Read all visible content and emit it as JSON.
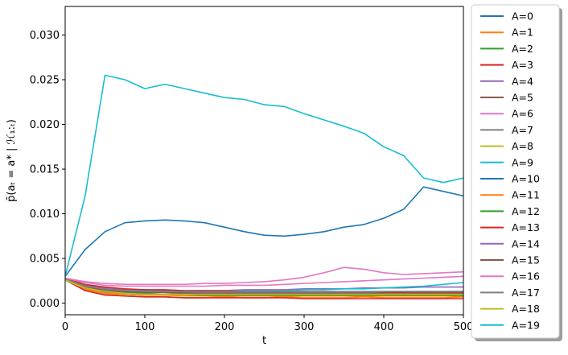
{
  "chart_data": {
    "type": "line",
    "xlabel": "t",
    "ylabel": "p̄(aₜ = a* | ℋ₁:ₜ)",
    "xlim": [
      0,
      500
    ],
    "ylim": [
      -0.0013,
      0.0332
    ],
    "x_ticks": [
      0,
      100,
      200,
      300,
      400,
      500
    ],
    "y_ticks": [
      0.0,
      0.005,
      0.01,
      0.015,
      0.02,
      0.025,
      0.03
    ],
    "y_tick_labels": [
      "0.000",
      "0.005",
      "0.010",
      "0.015",
      "0.020",
      "0.025",
      "0.030"
    ],
    "grid": false,
    "legend_position": "outside-right",
    "x": [
      0,
      25,
      50,
      75,
      100,
      125,
      150,
      175,
      200,
      225,
      250,
      275,
      300,
      325,
      350,
      375,
      400,
      425,
      450,
      475,
      500
    ],
    "series": [
      {
        "name": "A=0",
        "color": "#1f77b4",
        "values": [
          0.0028,
          0.002,
          0.0016,
          0.0014,
          0.0013,
          0.0012,
          0.0012,
          0.0011,
          0.0011,
          0.0011,
          0.001,
          0.001,
          0.0011,
          0.001,
          0.001,
          0.001,
          0.0011,
          0.001,
          0.001,
          0.0011,
          0.0011
        ]
      },
      {
        "name": "A=1",
        "color": "#ff7f0e",
        "values": [
          0.0027,
          0.0015,
          0.001,
          0.0008,
          0.0007,
          0.0007,
          0.0006,
          0.0006,
          0.0007,
          0.0006,
          0.0006,
          0.0007,
          0.0006,
          0.0006,
          0.0006,
          0.0007,
          0.0006,
          0.0006,
          0.0006,
          0.0006,
          0.0007
        ]
      },
      {
        "name": "A=2",
        "color": "#2ca02c",
        "values": [
          0.0027,
          0.0018,
          0.0014,
          0.0012,
          0.0011,
          0.001,
          0.001,
          0.001,
          0.0011,
          0.001,
          0.001,
          0.0011,
          0.001,
          0.001,
          0.0011,
          0.001,
          0.001,
          0.0011,
          0.001,
          0.001,
          0.001
        ]
      },
      {
        "name": "A=3",
        "color": "#d62728",
        "values": [
          0.0026,
          0.0014,
          0.0009,
          0.0008,
          0.0007,
          0.0007,
          0.0006,
          0.0006,
          0.0006,
          0.0006,
          0.0006,
          0.0006,
          0.0005,
          0.0005,
          0.0005,
          0.0005,
          0.0005,
          0.0005,
          0.0005,
          0.0005,
          0.0005
        ]
      },
      {
        "name": "A=4",
        "color": "#9467bd",
        "values": [
          0.0027,
          0.002,
          0.0017,
          0.0015,
          0.0015,
          0.0014,
          0.0014,
          0.0014,
          0.0014,
          0.0015,
          0.0015,
          0.0015,
          0.0016,
          0.0016,
          0.0016,
          0.0017,
          0.0017,
          0.0017,
          0.0018,
          0.0018,
          0.0018
        ]
      },
      {
        "name": "A=5",
        "color": "#8c564b",
        "values": [
          0.0026,
          0.0017,
          0.0013,
          0.0011,
          0.001,
          0.001,
          0.001,
          0.001,
          0.001,
          0.001,
          0.001,
          0.001,
          0.001,
          0.001,
          0.001,
          0.001,
          0.001,
          0.001,
          0.001,
          0.001,
          0.001
        ]
      },
      {
        "name": "A=6",
        "color": "#e377c2",
        "values": [
          0.0028,
          0.0024,
          0.0022,
          0.0021,
          0.0021,
          0.0021,
          0.0021,
          0.0022,
          0.0022,
          0.0023,
          0.0024,
          0.0026,
          0.0029,
          0.0034,
          0.004,
          0.0038,
          0.0034,
          0.0032,
          0.0033,
          0.0034,
          0.0035
        ]
      },
      {
        "name": "A=7",
        "color": "#7f7f7f",
        "values": [
          0.0026,
          0.0016,
          0.0012,
          0.001,
          0.0009,
          0.0009,
          0.0009,
          0.0009,
          0.0009,
          0.0009,
          0.0009,
          0.0009,
          0.0009,
          0.0009,
          0.0009,
          0.0009,
          0.0009,
          0.0009,
          0.0009,
          0.0009,
          0.0009
        ]
      },
      {
        "name": "A=8",
        "color": "#bcbd22",
        "values": [
          0.0027,
          0.0016,
          0.0011,
          0.001,
          0.0009,
          0.0009,
          0.0008,
          0.0008,
          0.0008,
          0.0008,
          0.0008,
          0.0008,
          0.0008,
          0.0008,
          0.0008,
          0.0008,
          0.0008,
          0.0008,
          0.0008,
          0.0008,
          0.0008
        ]
      },
      {
        "name": "A=9",
        "color": "#17becf",
        "values": [
          0.0027,
          0.0018,
          0.0015,
          0.0014,
          0.0014,
          0.0013,
          0.0013,
          0.0013,
          0.0013,
          0.0014,
          0.0014,
          0.0014,
          0.0015,
          0.0015,
          0.0016,
          0.0016,
          0.0017,
          0.0018,
          0.0019,
          0.0021,
          0.0023
        ]
      },
      {
        "name": "A=10",
        "color": "#1f77b4",
        "values": [
          0.003,
          0.006,
          0.008,
          0.009,
          0.0092,
          0.0093,
          0.0092,
          0.009,
          0.0085,
          0.008,
          0.0076,
          0.0075,
          0.0077,
          0.008,
          0.0085,
          0.0088,
          0.0095,
          0.0105,
          0.013,
          0.0125,
          0.012
        ]
      },
      {
        "name": "A=11",
        "color": "#ff7f0e",
        "values": [
          0.0026,
          0.0016,
          0.0011,
          0.001,
          0.0009,
          0.0009,
          0.0009,
          0.0008,
          0.0008,
          0.0008,
          0.0008,
          0.0008,
          0.0008,
          0.0008,
          0.0008,
          0.0008,
          0.0008,
          0.0008,
          0.0008,
          0.0008,
          0.0008
        ]
      },
      {
        "name": "A=12",
        "color": "#2ca02c",
        "values": [
          0.0027,
          0.0017,
          0.0013,
          0.0011,
          0.001,
          0.001,
          0.001,
          0.0009,
          0.0009,
          0.0009,
          0.0009,
          0.0009,
          0.0009,
          0.0009,
          0.0009,
          0.0009,
          0.0009,
          0.0009,
          0.0009,
          0.0009,
          0.0009
        ]
      },
      {
        "name": "A=13",
        "color": "#d62728",
        "values": [
          0.0028,
          0.0021,
          0.0018,
          0.0016,
          0.0015,
          0.0015,
          0.0014,
          0.0014,
          0.0014,
          0.0013,
          0.0013,
          0.0013,
          0.0013,
          0.0012,
          0.0012,
          0.0012,
          0.0012,
          0.0012,
          0.0012,
          0.0012,
          0.0012
        ]
      },
      {
        "name": "A=14",
        "color": "#9467bd",
        "values": [
          0.0027,
          0.0019,
          0.0015,
          0.0014,
          0.0013,
          0.0013,
          0.0013,
          0.0012,
          0.0012,
          0.0012,
          0.0012,
          0.0012,
          0.0012,
          0.0012,
          0.0012,
          0.0012,
          0.0013,
          0.0013,
          0.0013,
          0.0013,
          0.0013
        ]
      },
      {
        "name": "A=15",
        "color": "#8c564b",
        "values": [
          0.0026,
          0.0018,
          0.0014,
          0.0013,
          0.0012,
          0.0012,
          0.0011,
          0.0011,
          0.0011,
          0.0011,
          0.0011,
          0.0011,
          0.0011,
          0.0011,
          0.0011,
          0.0011,
          0.0011,
          0.0011,
          0.0011,
          0.0011,
          0.0011
        ]
      },
      {
        "name": "A=16",
        "color": "#e377c2",
        "values": [
          0.0028,
          0.0023,
          0.002,
          0.0019,
          0.0019,
          0.0019,
          0.0019,
          0.0019,
          0.002,
          0.002,
          0.002,
          0.0021,
          0.0022,
          0.0023,
          0.0024,
          0.0025,
          0.0026,
          0.0027,
          0.0028,
          0.0029,
          0.003
        ]
      },
      {
        "name": "A=17",
        "color": "#7f7f7f",
        "values": [
          0.0027,
          0.0019,
          0.0016,
          0.0014,
          0.0013,
          0.0013,
          0.0013,
          0.0013,
          0.0013,
          0.0013,
          0.0013,
          0.0013,
          0.0013,
          0.0013,
          0.0013,
          0.0013,
          0.0013,
          0.0013,
          0.0013,
          0.0013,
          0.0013
        ]
      },
      {
        "name": "A=18",
        "color": "#bcbd22",
        "values": [
          0.0026,
          0.0017,
          0.0013,
          0.0011,
          0.001,
          0.001,
          0.001,
          0.001,
          0.001,
          0.001,
          0.001,
          0.001,
          0.001,
          0.001,
          0.001,
          0.001,
          0.001,
          0.001,
          0.001,
          0.001,
          0.001
        ]
      },
      {
        "name": "A=19",
        "color": "#17becf",
        "values": [
          0.003,
          0.012,
          0.0255,
          0.025,
          0.024,
          0.0245,
          0.024,
          0.0235,
          0.023,
          0.0228,
          0.0222,
          0.022,
          0.0212,
          0.0205,
          0.0198,
          0.019,
          0.0175,
          0.0165,
          0.014,
          0.0135,
          0.014
        ]
      }
    ]
  }
}
